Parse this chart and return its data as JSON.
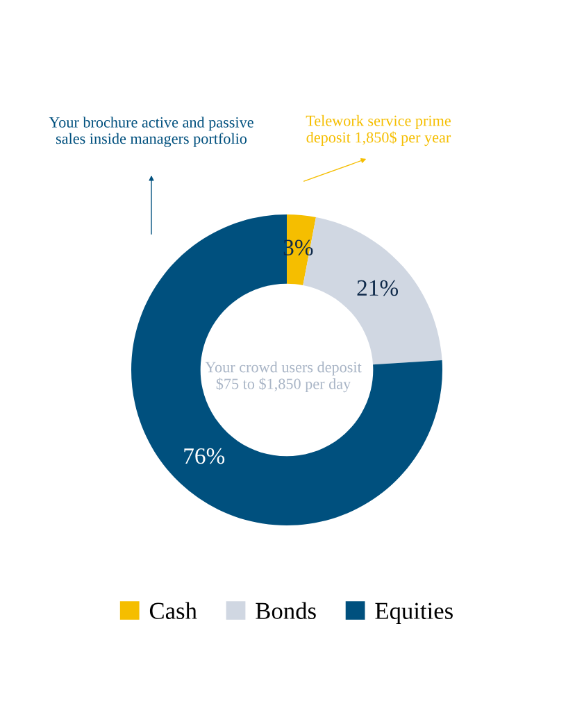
{
  "chart_data": {
    "type": "donut",
    "categories": [
      "Cash",
      "Bonds",
      "Equities"
    ],
    "values": [
      3,
      21,
      76
    ],
    "colors": [
      "#f5be00",
      "#d0d7e2",
      "#00507e"
    ],
    "value_labels": [
      "3%",
      "21%",
      "76%"
    ],
    "legend": "bottom",
    "annotations": [
      "Your brochure active and passive\nsales inside managers portfolio",
      "Telework service prime\ndeposit 1,850$ per year",
      "Your crowd users deposit\n$75 to $1,850 per day"
    ]
  }
}
